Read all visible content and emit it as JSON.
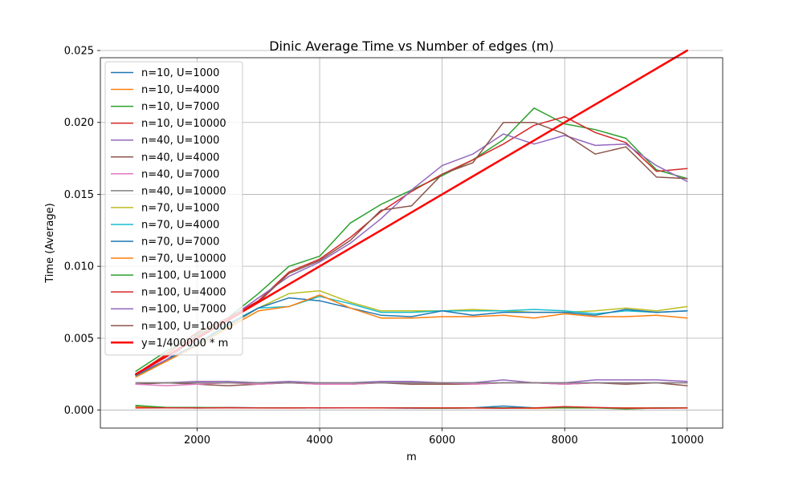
{
  "chart_data": {
    "type": "line",
    "title": "Dinic Average Time vs Number of edges (m)",
    "xlabel": "m",
    "ylabel": "Time (Average)",
    "xlim": [
      420,
      10580
    ],
    "ylim": [
      -0.00125,
      0.0245
    ],
    "xticks": [
      2000,
      4000,
      6000,
      8000,
      10000
    ],
    "xtick_labels": [
      "2000",
      "4000",
      "6000",
      "8000",
      "10000"
    ],
    "yticks": [
      0,
      0.005,
      0.01,
      0.015,
      0.02,
      0.025
    ],
    "ytick_labels": [
      "0.000",
      "0.005",
      "0.010",
      "0.015",
      "0.020",
      "0.025"
    ],
    "grid": true,
    "legend_position": "upper-left",
    "x": [
      1000,
      1500,
      2000,
      2500,
      3000,
      3500,
      4000,
      4500,
      5000,
      5500,
      6000,
      6500,
      7000,
      7500,
      8000,
      8500,
      9000,
      9500,
      10000
    ],
    "series": [
      {
        "name": "n=10, U=1000",
        "color": "#1f77b4",
        "width": 1.5,
        "values": [
          0.00025,
          0.00018,
          0.00015,
          0.00018,
          0.00016,
          0.00016,
          0.00015,
          0.00016,
          0.00016,
          0.00014,
          0.00013,
          0.00016,
          0.00028,
          0.00016,
          0.00017,
          0.00016,
          0.00015,
          0.00015,
          0.00016
        ]
      },
      {
        "name": "n=10, U=4000",
        "color": "#ff7f0e",
        "width": 1.5,
        "values": [
          0.00022,
          0.00016,
          0.00016,
          0.00017,
          0.00016,
          0.00015,
          0.00016,
          0.00016,
          0.00015,
          0.00016,
          0.00015,
          0.00015,
          0.00016,
          0.00012,
          0.00016,
          0.00015,
          0.00015,
          0.00015,
          0.00015
        ]
      },
      {
        "name": "n=10, U=7000",
        "color": "#2ca02c",
        "width": 1.5,
        "values": [
          0.00033,
          0.00018,
          0.00018,
          0.00016,
          0.00016,
          0.00016,
          0.00016,
          0.00016,
          0.00016,
          0.00016,
          0.00013,
          0.00016,
          0.00016,
          0.00016,
          0.00016,
          0.00016,
          8e-05,
          0.00015,
          0.00016
        ]
      },
      {
        "name": "n=10, U=10000",
        "color": "#d62728",
        "width": 1.5,
        "values": [
          0.00015,
          0.00016,
          0.00015,
          0.00016,
          0.00015,
          0.00015,
          0.00016,
          0.00016,
          0.00016,
          0.00015,
          0.00015,
          0.00015,
          0.00013,
          0.00015,
          0.00024,
          0.00019,
          0.00014,
          0.00014,
          0.00015
        ]
      },
      {
        "name": "n=40, U=1000",
        "color": "#9467bd",
        "width": 1.5,
        "values": [
          0.0019,
          0.0019,
          0.002,
          0.002,
          0.0019,
          0.002,
          0.0019,
          0.0019,
          0.002,
          0.002,
          0.0019,
          0.0019,
          0.0021,
          0.0019,
          0.0019,
          0.0021,
          0.0021,
          0.0021,
          0.002
        ]
      },
      {
        "name": "n=40, U=4000",
        "color": "#8c564b",
        "width": 1.5,
        "values": [
          0.0018,
          0.0019,
          0.0018,
          0.0017,
          0.0018,
          0.0019,
          0.0018,
          0.0018,
          0.0019,
          0.0018,
          0.0018,
          0.0018,
          0.0019,
          0.0019,
          0.0018,
          0.0019,
          0.0018,
          0.0019,
          0.0017
        ]
      },
      {
        "name": "n=40, U=7000",
        "color": "#e377c2",
        "width": 1.5,
        "values": [
          0.0018,
          0.0017,
          0.0018,
          0.0019,
          0.0018,
          0.0019,
          0.0018,
          0.0018,
          0.0019,
          0.0019,
          0.0019,
          0.0018,
          0.0019,
          0.0019,
          0.0018,
          0.0019,
          0.0019,
          0.0019,
          0.0019
        ]
      },
      {
        "name": "n=40, U=10000",
        "color": "#7f7f7f",
        "width": 1.5,
        "values": [
          0.0019,
          0.0019,
          0.0019,
          0.0019,
          0.0019,
          0.0019,
          0.0019,
          0.0019,
          0.0019,
          0.0019,
          0.0019,
          0.0019,
          0.0019,
          0.0019,
          0.0019,
          0.0019,
          0.0019,
          0.0019,
          0.0019
        ]
      },
      {
        "name": "n=70, U=1000",
        "color": "#bcbd22",
        "width": 1.5,
        "values": [
          0.0024,
          0.0034,
          0.0046,
          0.0058,
          0.0071,
          0.0081,
          0.0083,
          0.0075,
          0.0069,
          0.0069,
          0.0069,
          0.007,
          0.0069,
          0.0068,
          0.0068,
          0.0069,
          0.0071,
          0.0069,
          0.0072
        ]
      },
      {
        "name": "n=70, U=4000",
        "color": "#17becf",
        "width": 1.5,
        "values": [
          0.0024,
          0.0035,
          0.0046,
          0.006,
          0.0071,
          0.0072,
          0.0079,
          0.0074,
          0.0068,
          0.0068,
          0.0069,
          0.0069,
          0.0069,
          0.007,
          0.0069,
          0.0067,
          0.0069,
          0.0068,
          0.0069
        ]
      },
      {
        "name": "n=70, U=7000",
        "color": "#1f77b4",
        "width": 1.5,
        "values": [
          0.0024,
          0.0035,
          0.0046,
          0.0059,
          0.0071,
          0.0078,
          0.0076,
          0.0071,
          0.0066,
          0.0065,
          0.0069,
          0.0066,
          0.0068,
          0.0068,
          0.0068,
          0.0066,
          0.007,
          0.0068,
          0.0069
        ]
      },
      {
        "name": "n=70, U=10000",
        "color": "#ff7f0e",
        "width": 1.5,
        "values": [
          0.0023,
          0.0034,
          0.0045,
          0.0057,
          0.0069,
          0.0072,
          0.008,
          0.0071,
          0.0064,
          0.0064,
          0.0065,
          0.0065,
          0.0066,
          0.0064,
          0.0067,
          0.0065,
          0.0065,
          0.0066,
          0.0064
        ]
      },
      {
        "name": "n=100, U=1000",
        "color": "#2ca02c",
        "width": 1.5,
        "values": [
          0.0027,
          0.0041,
          0.0053,
          0.0064,
          0.0081,
          0.01,
          0.0107,
          0.013,
          0.0143,
          0.0153,
          0.0163,
          0.0174,
          0.0188,
          0.021,
          0.0199,
          0.0195,
          0.0189,
          0.0167,
          0.0161
        ]
      },
      {
        "name": "n=100, U=4000",
        "color": "#d62728",
        "width": 1.5,
        "values": [
          0.0025,
          0.0039,
          0.0054,
          0.0064,
          0.0076,
          0.0096,
          0.0105,
          0.012,
          0.0138,
          0.0152,
          0.0164,
          0.0174,
          0.0185,
          0.0198,
          0.0204,
          0.0193,
          0.0186,
          0.0166,
          0.0168
        ]
      },
      {
        "name": "n=100, U=7000",
        "color": "#9467bd",
        "width": 1.5,
        "values": [
          0.0025,
          0.0035,
          0.0051,
          0.0063,
          0.0078,
          0.0093,
          0.0103,
          0.0116,
          0.0133,
          0.0153,
          0.017,
          0.0178,
          0.0192,
          0.0185,
          0.0191,
          0.0184,
          0.0185,
          0.017,
          0.0159
        ]
      },
      {
        "name": "n=100, U=10000",
        "color": "#8c564b",
        "width": 1.5,
        "values": [
          0.0025,
          0.0037,
          0.0052,
          0.0062,
          0.0075,
          0.0095,
          0.0104,
          0.0118,
          0.0139,
          0.0142,
          0.0164,
          0.0172,
          0.02,
          0.02,
          0.0192,
          0.0178,
          0.0183,
          0.0162,
          0.0161
        ]
      },
      {
        "name": "y=1/400000 * m",
        "color": "#ff0000",
        "width": 2.5,
        "values": [
          0.0025,
          0.00375,
          0.005,
          0.00625,
          0.0075,
          0.00875,
          0.01,
          0.01125,
          0.0125,
          0.01375,
          0.015,
          0.01625,
          0.0175,
          0.01875,
          0.02,
          0.02125,
          0.0225,
          0.02375,
          0.025
        ]
      }
    ]
  }
}
